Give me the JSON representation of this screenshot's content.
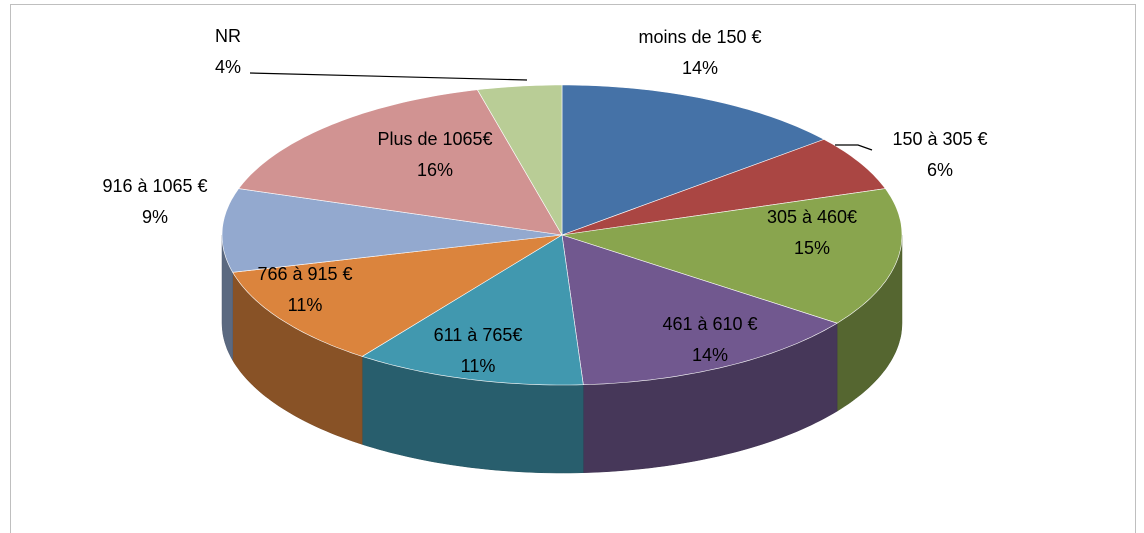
{
  "chart_data": {
    "type": "pie",
    "categories": [
      "moins de 150 €",
      "150 à 305 €",
      "305 à 460€",
      "461 à 610 €",
      "611 à 765€",
      "766 à 915 €",
      "916 à 1065 €",
      "Plus de 1065€",
      "NR"
    ],
    "values": [
      14,
      6,
      15,
      14,
      11,
      11,
      9,
      16,
      4
    ],
    "value_labels": [
      "14%",
      "6%",
      "15%",
      "14%",
      "11%",
      "11%",
      "9%",
      "16%",
      "4%"
    ],
    "colors": [
      "#4572a7",
      "#aa4643",
      "#89a54e",
      "#71588f",
      "#4198af",
      "#db843d",
      "#93a9cf",
      "#d19392",
      "#b9cd96"
    ]
  }
}
